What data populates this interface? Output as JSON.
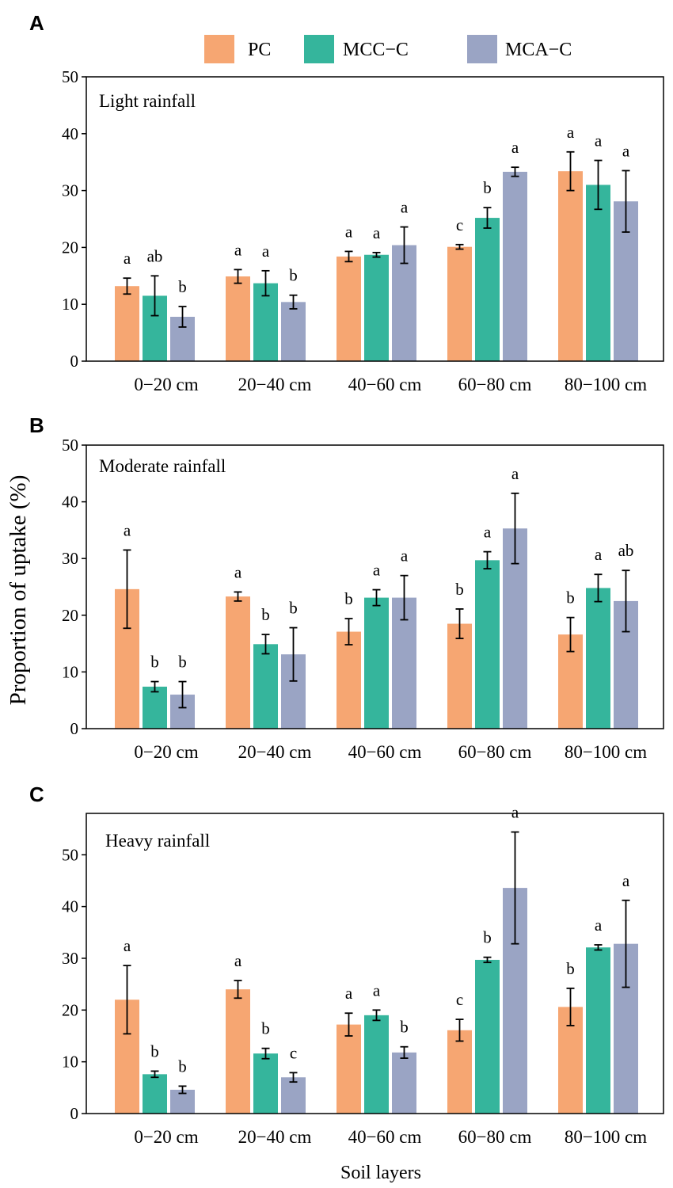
{
  "figure": {
    "y_axis_label": "Proportion of uptake (%)",
    "x_axis_label": "Soil layers",
    "legend": [
      {
        "name": "PC",
        "color": "#f6a672"
      },
      {
        "name": "MCC−C",
        "color": "#35b59c"
      },
      {
        "name": "MCA−C",
        "color": "#9aa4c4"
      }
    ]
  },
  "chart_data": [
    {
      "type": "bar",
      "panel_label": "A",
      "title": "Light rainfall",
      "categories": [
        "0−20 cm",
        "20−40 cm",
        "40−60 cm",
        "60−80 cm",
        "80−100 cm"
      ],
      "ylim": [
        0,
        50
      ],
      "yticks": [
        "0",
        "10",
        "20",
        "30",
        "40",
        "50"
      ],
      "series": [
        {
          "name": "PC",
          "values": [
            13.2,
            14.9,
            18.4,
            20.1,
            33.4
          ],
          "errors": [
            1.4,
            1.2,
            0.9,
            0.4,
            3.4
          ],
          "letters": [
            "a",
            "a",
            "a",
            "c",
            "a"
          ]
        },
        {
          "name": "MCC−C",
          "values": [
            11.5,
            13.7,
            18.7,
            25.2,
            31.0
          ],
          "errors": [
            3.5,
            2.2,
            0.4,
            1.8,
            4.3
          ],
          "letters": [
            "ab",
            "a",
            "a",
            "b",
            "a"
          ]
        },
        {
          "name": "MCA−C",
          "values": [
            7.8,
            10.4,
            20.4,
            33.3,
            28.1
          ],
          "errors": [
            1.8,
            1.2,
            3.2,
            0.8,
            5.4
          ],
          "letters": [
            "b",
            "b",
            "a",
            "a",
            "a"
          ]
        }
      ]
    },
    {
      "type": "bar",
      "panel_label": "B",
      "title": "Moderate rainfall",
      "categories": [
        "0−20 cm",
        "20−40 cm",
        "40−60 cm",
        "60−80 cm",
        "80−100 cm"
      ],
      "ylim": [
        0,
        50
      ],
      "yticks": [
        "0",
        "10",
        "20",
        "30",
        "40",
        "50"
      ],
      "series": [
        {
          "name": "PC",
          "values": [
            24.6,
            23.3,
            17.1,
            18.5,
            16.6
          ],
          "errors": [
            6.9,
            0.8,
            2.3,
            2.6,
            3.0
          ],
          "letters": [
            "a",
            "a",
            "b",
            "b",
            "b"
          ]
        },
        {
          "name": "MCC−C",
          "values": [
            7.4,
            14.9,
            23.1,
            29.7,
            24.8
          ],
          "errors": [
            0.9,
            1.7,
            1.4,
            1.5,
            2.4
          ],
          "letters": [
            "b",
            "b",
            "a",
            "a",
            "a"
          ]
        },
        {
          "name": "MCA−C",
          "values": [
            6.0,
            13.1,
            23.1,
            35.3,
            22.5
          ],
          "errors": [
            2.3,
            4.7,
            3.9,
            6.2,
            5.4
          ],
          "letters": [
            "b",
            "b",
            "a",
            "a",
            "ab"
          ]
        }
      ]
    },
    {
      "type": "bar",
      "panel_label": "C",
      "title": "Heavy rainfall",
      "categories": [
        "0−20 cm",
        "20−40 cm",
        "40−60 cm",
        "60−80 cm",
        "80−100 cm"
      ],
      "ylim": [
        0,
        58
      ],
      "yticks": [
        "0",
        "10",
        "20",
        "30",
        "40",
        "50"
      ],
      "series": [
        {
          "name": "PC",
          "values": [
            22.0,
            24.0,
            17.2,
            16.1,
            20.6
          ],
          "errors": [
            6.6,
            1.7,
            2.2,
            2.1,
            3.6
          ],
          "letters": [
            "a",
            "a",
            "a",
            "c",
            "b"
          ]
        },
        {
          "name": "MCC−C",
          "values": [
            7.6,
            11.6,
            19.0,
            29.7,
            32.1
          ],
          "errors": [
            0.6,
            1.0,
            1.0,
            0.5,
            0.5
          ],
          "letters": [
            "b",
            "b",
            "a",
            "b",
            "a"
          ]
        },
        {
          "name": "MCA−C",
          "values": [
            4.6,
            7.0,
            11.8,
            43.6,
            32.8
          ],
          "errors": [
            0.7,
            0.9,
            1.1,
            10.8,
            8.4
          ],
          "letters": [
            "b",
            "c",
            "b",
            "a",
            "a"
          ]
        }
      ]
    }
  ]
}
